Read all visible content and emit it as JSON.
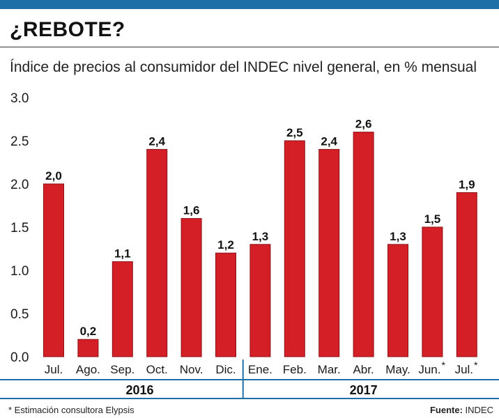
{
  "header": {
    "title": "¿REBOTE?",
    "subtitle": "Índice de precios al consumidor del INDEC nivel general, en % mensual"
  },
  "colors": {
    "bar": "#d51f26",
    "accent": "#1e6fa8"
  },
  "footer": {
    "note": "* Estimación consultora Elypsis",
    "source_label": "Fuente:",
    "source_value": "INDEC"
  },
  "chart_data": {
    "type": "bar",
    "title": "¿REBOTE?",
    "xlabel": "",
    "ylabel": "",
    "ylim": [
      0,
      3
    ],
    "yticks": [
      "0.0",
      "0.5",
      "1.0",
      "1.5",
      "2.0",
      "2.5",
      "3.0"
    ],
    "categories": [
      "Jul.",
      "Ago.",
      "Sep.",
      "Oct.",
      "Nov.",
      "Dic.",
      "Ene.",
      "Feb.",
      "Mar.",
      "Abr.",
      "May.",
      "Jun.*",
      "Jul.*"
    ],
    "values": [
      2.0,
      0.2,
      1.1,
      2.4,
      1.6,
      1.2,
      1.3,
      2.5,
      2.4,
      2.6,
      1.3,
      1.5,
      1.9
    ],
    "data_labels": [
      "2,0",
      "0,2",
      "1,1",
      "2,4",
      "1,6",
      "1,2",
      "1,3",
      "2,5",
      "2,4",
      "2,6",
      "1,3",
      "1,5",
      "1,9"
    ],
    "groups": [
      {
        "label": "2016",
        "count": 6
      },
      {
        "label": "2017",
        "count": 7
      }
    ],
    "grid": false
  }
}
